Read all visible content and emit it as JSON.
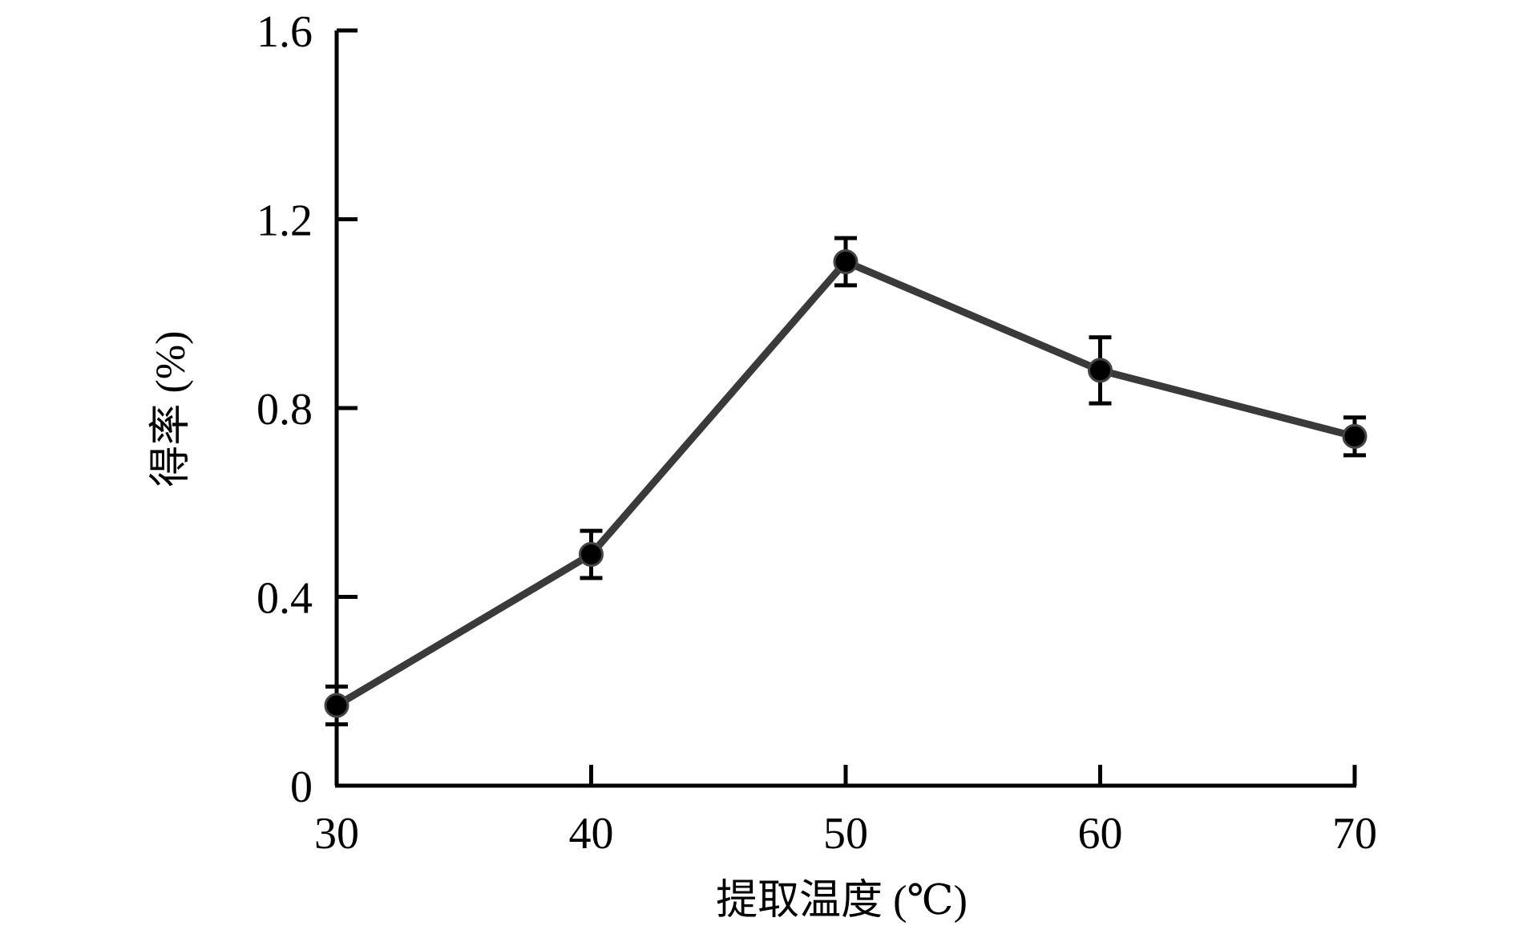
{
  "chart_data": {
    "type": "line",
    "title": "",
    "xlabel": "提取温度 (℃)",
    "ylabel": "得率 (%)",
    "x": [
      30,
      40,
      50,
      60,
      70
    ],
    "x_tick_labels": [
      "30",
      "40",
      "50",
      "60",
      "70"
    ],
    "xlim": [
      30,
      70
    ],
    "ylim": [
      0,
      1.6
    ],
    "y_ticks": [
      0,
      0.4,
      0.8,
      1.2,
      1.6
    ],
    "y_tick_labels": [
      "0",
      "0.4",
      "0.8",
      "1.2",
      "1.6"
    ],
    "series": [
      {
        "values": [
          0.17,
          0.49,
          1.11,
          0.88,
          0.74
        ],
        "error": [
          0.04,
          0.05,
          0.05,
          0.07,
          0.04
        ],
        "color": "#3a3a3a",
        "marker": "circle",
        "marker_color": "#000000"
      }
    ],
    "grid": false,
    "legend": "none"
  }
}
